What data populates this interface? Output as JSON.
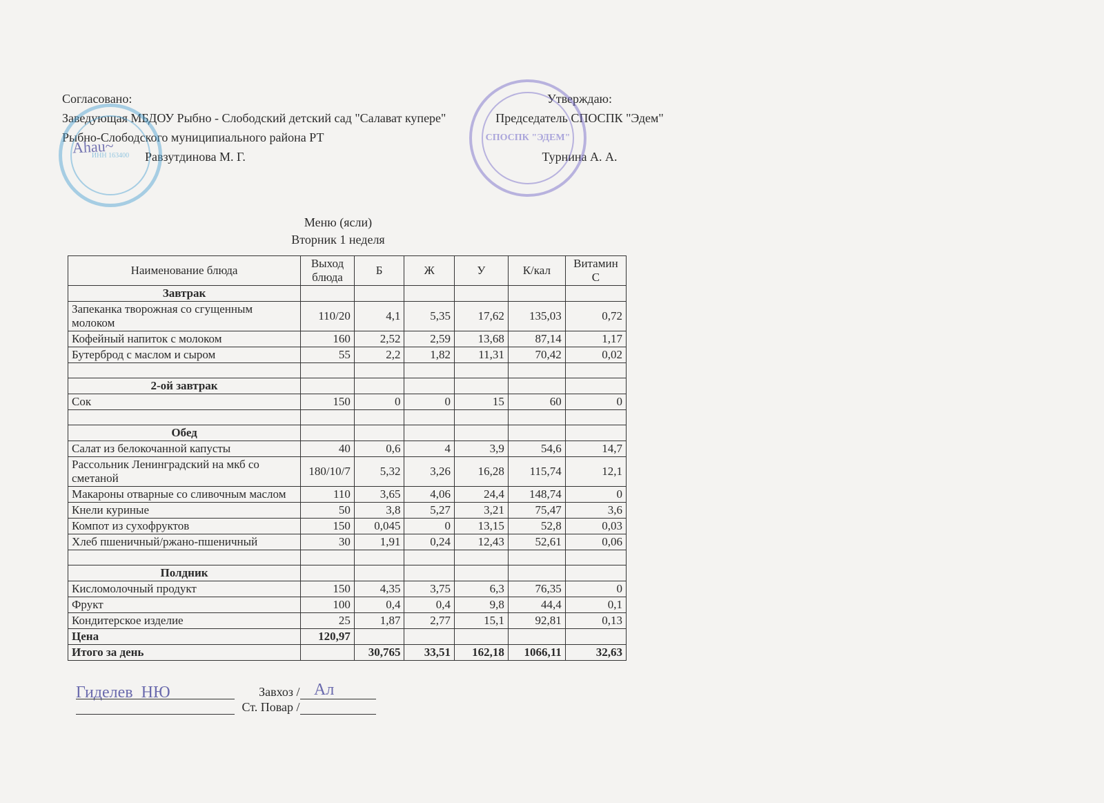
{
  "approval_left": {
    "line1": "Согласовано:",
    "line2": "Заведующая МБДОУ  Рыбно - Слободский детский сад \"Салават купере\"",
    "line3": "Рыбно-Слободского  муниципиального района РТ",
    "signer": "Равзутдинова М. Г."
  },
  "approval_right": {
    "line1": "Утверждаю:",
    "line2": "Председатель СПОСПК \"Эдем\"",
    "signer": "Турнина А. А."
  },
  "title": {
    "line1": "Меню  (ясли)",
    "line2": "Вторник 1 неделя"
  },
  "columns": {
    "name": "Наименование блюда",
    "out": "Выход блюда",
    "b": "Б",
    "zh": "Ж",
    "u": "У",
    "kcal": "К/кал",
    "vitc": "Витамин С"
  },
  "sections": [
    {
      "title": "Завтрак",
      "rows": [
        {
          "name": "Запеканка творожная со сгущенным молоком",
          "out": "110/20",
          "b": "4,1",
          "zh": "5,35",
          "u": "17,62",
          "kcal": "135,03",
          "vitc": "0,72"
        },
        {
          "name": "Кофейный напиток с молоком",
          "out": "160",
          "b": "2,52",
          "zh": "2,59",
          "u": "13,68",
          "kcal": "87,14",
          "vitc": "1,17"
        },
        {
          "name": "Бутерброд с маслом и сыром",
          "out": "55",
          "b": "2,2",
          "zh": "1,82",
          "u": "11,31",
          "kcal": "70,42",
          "vitc": "0,02"
        }
      ],
      "blank_after": 1
    },
    {
      "title": "2-ой завтрак",
      "rows": [
        {
          "name": "Сок",
          "out": "150",
          "b": "0",
          "zh": "0",
          "u": "15",
          "kcal": "60",
          "vitc": "0"
        }
      ],
      "blank_after": 1
    },
    {
      "title": "Обед",
      "rows": [
        {
          "name": "Салат из белокочанной капусты",
          "out": "40",
          "b": "0,6",
          "zh": "4",
          "u": "3,9",
          "kcal": "54,6",
          "vitc": "14,7"
        },
        {
          "name": "Рассольник Ленинградский на мкб со сметаной",
          "out": "180/10/7",
          "b": "5,32",
          "zh": "3,26",
          "u": "16,28",
          "kcal": "115,74",
          "vitc": "12,1",
          "tall": true
        },
        {
          "name": "Макароны отварные со сливочным маслом",
          "out": "110",
          "b": "3,65",
          "zh": "4,06",
          "u": "24,4",
          "kcal": "148,74",
          "vitc": "0"
        },
        {
          "name": "Кнели куриные",
          "out": "50",
          "b": "3,8",
          "zh": "5,27",
          "u": "3,21",
          "kcal": "75,47",
          "vitc": "3,6"
        },
        {
          "name": "Компот из сухофруктов",
          "out": "150",
          "b": "0,045",
          "zh": "0",
          "u": "13,15",
          "kcal": "52,8",
          "vitc": "0,03"
        },
        {
          "name": "Хлеб пшеничный/ржано-пшеничный",
          "out": "30",
          "b": "1,91",
          "zh": "0,24",
          "u": "12,43",
          "kcal": "52,61",
          "vitc": "0,06"
        }
      ],
      "blank_after": 1
    },
    {
      "title": "Полдник",
      "rows": [
        {
          "name": "Кисломолочный продукт",
          "out": "150",
          "b": "4,35",
          "zh": "3,75",
          "u": "6,3",
          "kcal": "76,35",
          "vitc": "0"
        },
        {
          "name": "Фрукт",
          "out": "100",
          "b": "0,4",
          "zh": "0,4",
          "u": "9,8",
          "kcal": "44,4",
          "vitc": "0,1"
        },
        {
          "name": "Кондитерское изделие",
          "out": "25",
          "b": "1,87",
          "zh": "2,77",
          "u": "15,1",
          "kcal": "92,81",
          "vitc": "0,13"
        }
      ],
      "blank_after": 0
    }
  ],
  "price_row": {
    "name": "Цена",
    "out": "120,97"
  },
  "total_row": {
    "name": "Итого за день",
    "b": "30,765",
    "zh": "33,51",
    "u": "162,18",
    "kcal": "1066,11",
    "vitc": "32,63"
  },
  "footer": {
    "role1": "Завхоз /",
    "role2": "Ст. Повар /"
  }
}
